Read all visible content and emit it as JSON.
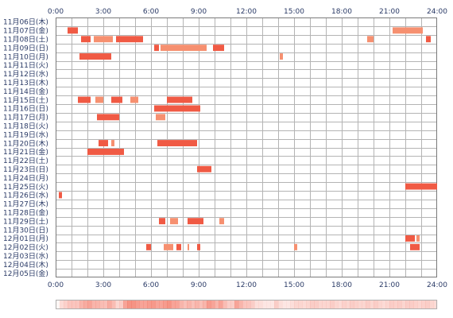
{
  "chart_data": {
    "type": "heatmap",
    "title": "",
    "xlabel": "",
    "ylabel": "",
    "x_ticks": [
      "0:00",
      "3:00",
      "6:00",
      "9:00",
      "12:00",
      "15:00",
      "18:00",
      "21:00",
      "24:00"
    ],
    "xlim": [
      0,
      24
    ],
    "grid": true,
    "colors": {
      "bar_dark": "#f05a44",
      "bar_light": "#f69070",
      "grid": "#b4b4b4",
      "frame": "#7a7a7a",
      "text": "#2a3a66"
    },
    "rows": [
      "11月06日(木)",
      "11月07日(金)",
      "11月08日(土)",
      "11月09日(日)",
      "11月10日(月)",
      "11月11日(火)",
      "11月12日(水)",
      "11月13日(木)",
      "11月14日(金)",
      "11月15日(土)",
      "11月16日(日)",
      "11月17日(月)",
      "11月18日(火)",
      "11月19日(水)",
      "11月20日(木)",
      "11月21日(金)",
      "11月22日(土)",
      "11月23日(日)",
      "11月24日(月)",
      "11月25日(火)",
      "11月26日(水)",
      "11月27日(木)",
      "11月28日(金)",
      "11月29日(土)",
      "11月30日(日)",
      "12月01日(月)",
      "12月02日(火)",
      "12月03日(水)",
      "12月04日(木)",
      "12月05日(金)"
    ],
    "segments": [
      [],
      [
        [
          0.75,
          1.4
        ],
        [
          21.2,
          23.1
        ]
      ],
      [
        [
          1.6,
          2.2
        ],
        [
          2.4,
          3.6
        ],
        [
          3.8,
          5.5
        ],
        [
          19.6,
          20.0
        ],
        [
          23.3,
          23.6
        ]
      ],
      [
        [
          6.2,
          6.5
        ],
        [
          6.6,
          9.5
        ],
        [
          9.9,
          10.6
        ]
      ],
      [
        [
          1.5,
          3.5
        ],
        [
          14.1,
          14.3
        ]
      ],
      [],
      [],
      [],
      [],
      [
        [
          1.4,
          2.2
        ],
        [
          2.5,
          3.0
        ],
        [
          3.5,
          4.2
        ],
        [
          4.7,
          5.2
        ],
        [
          7.0,
          8.6
        ]
      ],
      [
        [
          6.2,
          9.1
        ]
      ],
      [
        [
          2.6,
          4.0
        ],
        [
          6.3,
          6.9
        ]
      ],
      [],
      [],
      [
        [
          2.7,
          3.3
        ],
        [
          3.5,
          3.7
        ],
        [
          6.4,
          8.9
        ]
      ],
      [
        [
          2.0,
          4.3
        ]
      ],
      [],
      [
        [
          8.9,
          9.8
        ]
      ],
      [],
      [
        [
          22.0,
          24.0
        ]
      ],
      [
        [
          0.2,
          0.4
        ]
      ],
      [],
      [],
      [
        [
          6.5,
          6.9
        ],
        [
          7.2,
          7.7
        ],
        [
          8.3,
          9.3
        ],
        [
          10.3,
          10.6
        ]
      ],
      [],
      [
        [
          22.0,
          22.6
        ],
        [
          22.7,
          22.9
        ]
      ],
      [
        [
          5.7,
          6.0
        ],
        [
          6.8,
          7.4
        ],
        [
          7.6,
          7.9
        ],
        [
          8.3,
          8.4
        ],
        [
          8.9,
          9.1
        ],
        [
          15.0,
          15.2
        ],
        [
          22.3,
          22.9
        ]
      ],
      [],
      [],
      []
    ],
    "density": [
      0.05,
      0.22,
      0.28,
      0.35,
      0.35,
      0.35,
      0.45,
      0.5,
      0.55,
      0.45,
      0.45,
      0.4,
      0.38,
      0.5,
      0.4,
      0.25,
      0.3,
      0.55,
      0.65,
      0.65,
      0.6,
      0.55,
      0.55,
      0.6,
      0.62,
      0.55,
      0.55,
      0.6,
      0.65,
      0.55,
      0.55,
      0.45,
      0.38,
      0.45,
      0.38,
      0.45,
      0.38,
      0.45,
      0.6,
      0.55,
      0.45,
      0.55,
      0.4,
      0.3,
      0.3,
      0.55,
      0.45,
      0.35,
      0.35,
      0.3,
      0.2,
      0.2,
      0.15,
      0.15,
      0.15,
      0.3,
      0.2,
      0.15,
      0.15,
      0.2,
      0.25,
      0.25,
      0.22,
      0.25,
      0.3,
      0.3,
      0.25,
      0.25,
      0.25,
      0.3,
      0.25,
      0.22,
      0.28,
      0.25,
      0.3,
      0.28,
      0.25,
      0.25,
      0.3,
      0.25,
      0.3,
      0.25,
      0.22,
      0.25,
      0.3,
      0.28,
      0.3,
      0.25,
      0.3,
      0.3,
      0.28,
      0.25,
      0.28,
      0.3,
      0.25,
      0.22
    ]
  }
}
